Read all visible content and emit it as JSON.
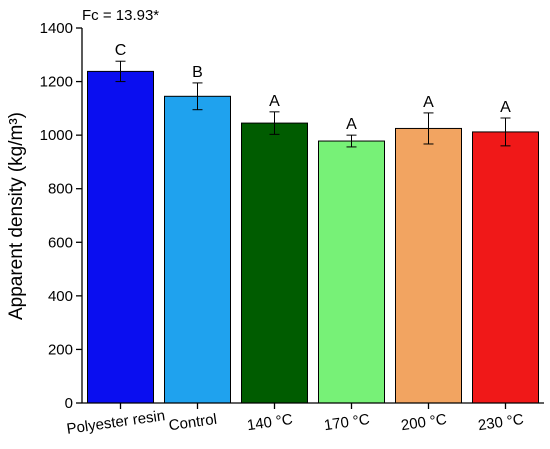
{
  "chart_data": {
    "type": "bar",
    "title": "",
    "annotation": "Fc = 13.93*",
    "xlabel": "",
    "ylabel": "Apparent density (kg/m³)",
    "ylim": [
      0,
      1400
    ],
    "yticks": [
      0,
      200,
      400,
      600,
      800,
      1000,
      1200,
      1400
    ],
    "grid": false,
    "categories": [
      "Polyester resin",
      "Control",
      "140 °C",
      "170 °C",
      "200 °C",
      "230 °C"
    ],
    "values": [
      1238,
      1145,
      1045,
      978,
      1025,
      1012
    ],
    "errors": [
      38,
      50,
      42,
      22,
      58,
      52
    ],
    "letters": [
      "C",
      "B",
      "A",
      "A",
      "A",
      "A"
    ],
    "colors": [
      "#0a0ef0",
      "#1fa2ee",
      "#005c00",
      "#77f177",
      "#f2a461",
      "#f01818"
    ]
  }
}
